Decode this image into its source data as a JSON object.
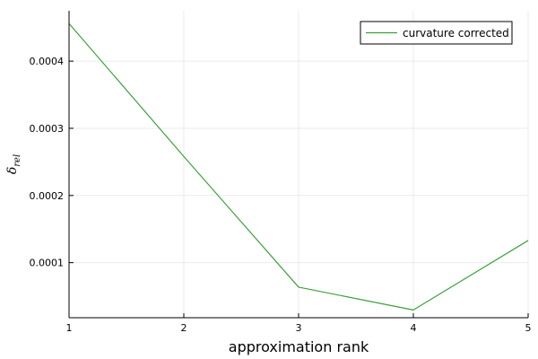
{
  "chart_data": {
    "type": "line",
    "xlabel": "approximation rank",
    "ylabel": {
      "main": "δ",
      "sub": "rel"
    },
    "x": [
      1,
      2,
      3,
      4,
      5
    ],
    "xticks": [
      "1",
      "2",
      "3",
      "4",
      "5"
    ],
    "xlim": [
      1,
      5
    ],
    "yticks": [
      {
        "value": 0.0001,
        "label": "0.0001"
      },
      {
        "value": 0.0002,
        "label": "0.0002"
      },
      {
        "value": 0.0003,
        "label": "0.0003"
      },
      {
        "value": 0.0004,
        "label": "0.0004"
      }
    ],
    "ylim": [
      1.8e-05,
      0.000475
    ],
    "grid": true,
    "legend_position": "top-right",
    "series": [
      {
        "name": "curvature corrected",
        "color": "#3ba13b",
        "values": [
          0.000456,
          0.000258,
          6.35e-05,
          2.95e-05,
          0.000133
        ]
      }
    ]
  }
}
